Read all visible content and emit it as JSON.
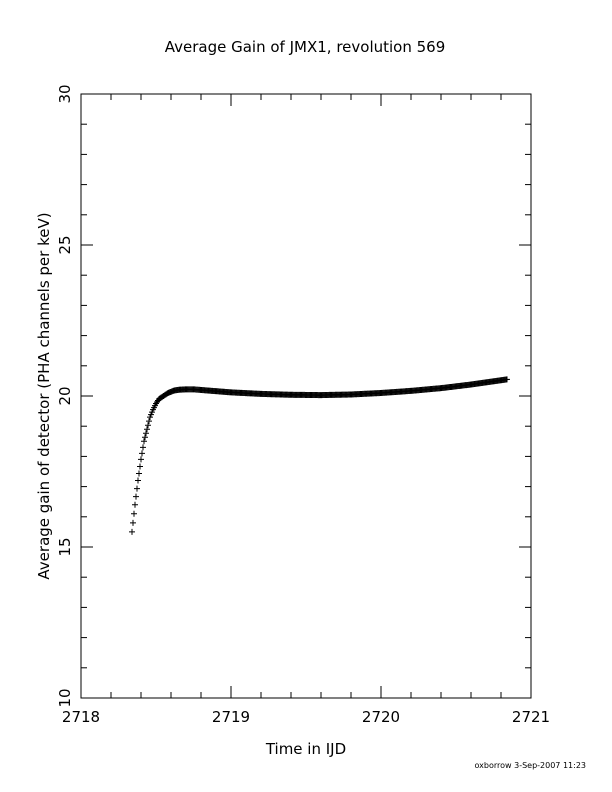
{
  "chart_data": {
    "type": "scatter",
    "title": "Average Gain of JMX1, revolution 569",
    "xlabel": "Time in IJD",
    "ylabel": "Average gain of detector (PHA channels per keV)",
    "xlim": [
      2718,
      2721
    ],
    "ylim": [
      10,
      30
    ],
    "x_ticks": [
      "2718",
      "2719",
      "2720",
      "2721"
    ],
    "y_ticks": [
      "10",
      "15",
      "20",
      "25",
      "30"
    ],
    "marker": "plus",
    "grid": false,
    "series": [
      {
        "x": [
          2718.34,
          2718.36,
          2718.38,
          2718.4,
          2718.42,
          2718.44,
          2718.46,
          2718.48,
          2718.5,
          2718.52,
          2718.55,
          2718.58,
          2718.62,
          2718.66,
          2718.7,
          2718.75,
          2718.8,
          2718.9,
          2719.0,
          2719.2,
          2719.4,
          2719.6,
          2719.8,
          2720.0,
          2720.2,
          2720.4,
          2720.6,
          2720.7,
          2720.8,
          2720.84
        ],
        "y": [
          15.5,
          16.4,
          17.2,
          17.9,
          18.5,
          18.9,
          19.3,
          19.55,
          19.75,
          19.9,
          20.0,
          20.1,
          20.18,
          20.21,
          20.22,
          20.22,
          20.2,
          20.16,
          20.12,
          20.07,
          20.04,
          20.03,
          20.05,
          20.1,
          20.17,
          20.26,
          20.38,
          20.45,
          20.52,
          20.55
        ]
      }
    ]
  },
  "footer": {
    "text": "oxborrow  3-Sep-2007 11:23"
  }
}
